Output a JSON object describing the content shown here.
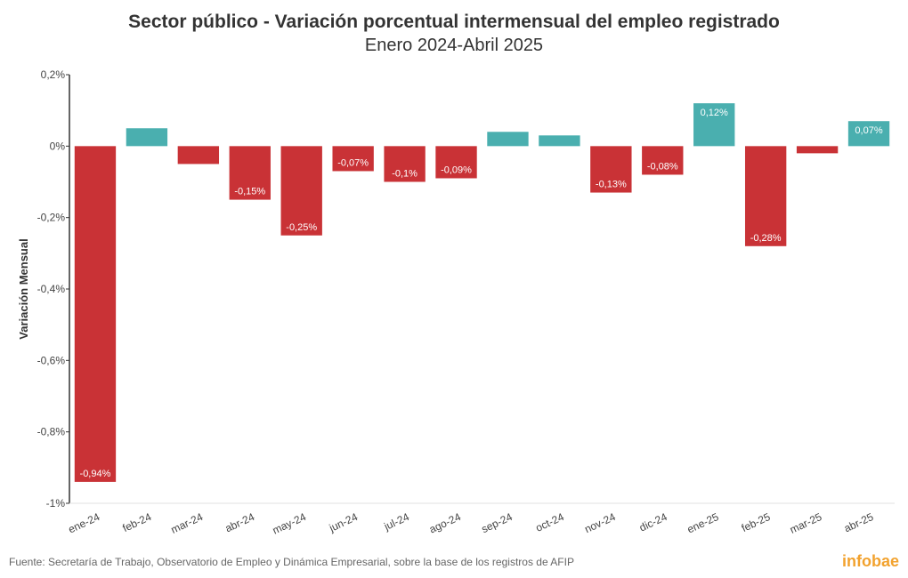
{
  "chart_data": {
    "type": "bar",
    "title": "Sector público - Variación porcentual intermensual del empleo registrado",
    "subtitle": "Enero 2024-Abril 2025",
    "ylabel": "Variación Mensual",
    "xlabel": "",
    "ylim": [
      -1.0,
      0.2
    ],
    "yticks": [
      0.2,
      0,
      -0.2,
      -0.4,
      -0.6,
      -0.8,
      -1.0
    ],
    "ytick_labels": [
      "0,2%",
      "0%",
      "-0,2%",
      "-0,4%",
      "-0,6%",
      "-0,8%",
      "-1%"
    ],
    "categories": [
      "ene-24",
      "feb-24",
      "mar-24",
      "abr-24",
      "may-24",
      "jun-24",
      "jul-24",
      "ago-24",
      "sep-24",
      "oct-24",
      "nov-24",
      "dic-24",
      "ene-25",
      "feb-25",
      "mar-25",
      "abr-25"
    ],
    "values": [
      -0.94,
      0.05,
      -0.05,
      -0.15,
      -0.25,
      -0.07,
      -0.1,
      -0.09,
      0.04,
      0.03,
      -0.13,
      -0.08,
      0.12,
      -0.28,
      -0.02,
      0.07
    ],
    "data_labels": [
      "-0,94%",
      "",
      "",
      "-0,15%",
      "-0,25%",
      "-0,07%",
      "-0,1%",
      "-0,09%",
      "",
      "",
      "-0,13%",
      "-0,08%",
      "0,12%",
      "-0,28%",
      "",
      "0,07%"
    ],
    "colors": {
      "positive": "#4aafaf",
      "negative": "#c93236"
    },
    "grid": false
  },
  "footer": {
    "source": "Fuente: Secretaría de Trabajo, Observatorio de Empleo y Dinámica Empresarial, sobre la base de los registros de AFIP",
    "brand": "infobae"
  }
}
